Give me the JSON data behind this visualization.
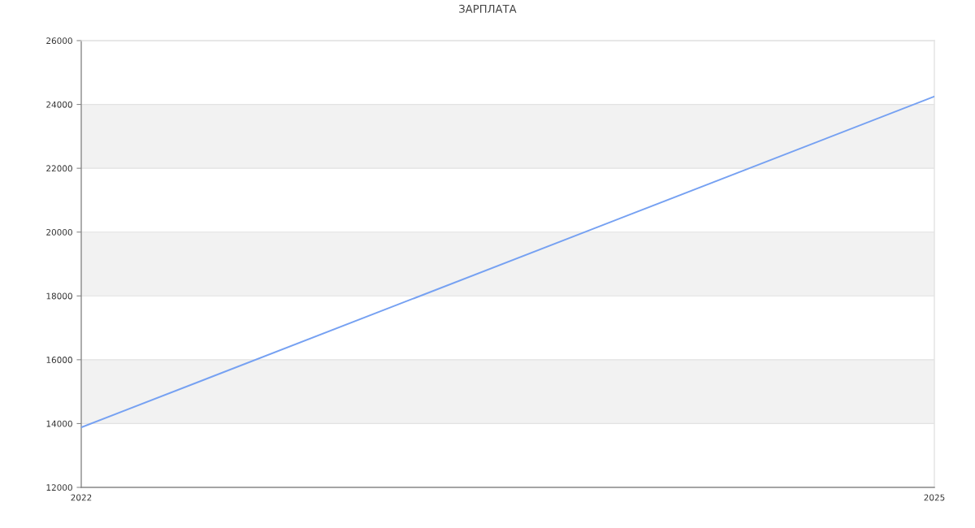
{
  "chart_data": {
    "type": "line",
    "title": "ЗАРПЛАТА",
    "x": [
      2022,
      2025
    ],
    "series": [
      {
        "color": "#76a1f2",
        "values": [
          13880,
          24250
        ]
      }
    ],
    "xlim": [
      2022,
      2025
    ],
    "xticks": [
      2022,
      2025
    ],
    "ylim": [
      12000,
      26000
    ],
    "yticks": [
      12000,
      14000,
      16000,
      18000,
      20000,
      22000,
      24000,
      26000
    ],
    "bands": [
      {
        "axis": "y",
        "from": 14000,
        "to": 16000,
        "color": "#f2f2f2"
      },
      {
        "axis": "y",
        "from": 18000,
        "to": 20000,
        "color": "#f2f2f2"
      },
      {
        "axis": "y",
        "from": 22000,
        "to": 24000,
        "color": "#f2f2f2"
      }
    ],
    "grid": "y",
    "marker": "none",
    "line_style": "solid"
  }
}
